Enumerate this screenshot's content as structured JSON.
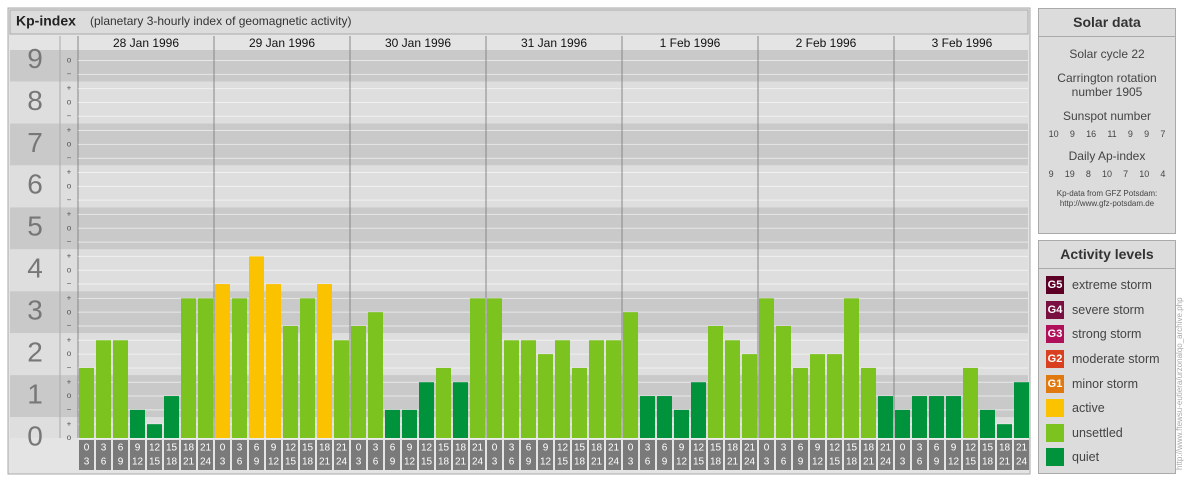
{
  "header": {
    "title": "Kp-index",
    "subtitle": "(planetary 3-hourly index of geomagnetic activity)"
  },
  "chart_data": {
    "type": "bar",
    "days": [
      "28 Jan 1996",
      "29 Jan 1996",
      "30 Jan 1996",
      "31 Jan 1996",
      "1 Feb 1996",
      "2 Feb 1996",
      "3 Feb 1996"
    ],
    "hours": [
      [
        0,
        3
      ],
      [
        3,
        6
      ],
      [
        6,
        9
      ],
      [
        9,
        12
      ],
      [
        12,
        15
      ],
      [
        15,
        18
      ],
      [
        18,
        21
      ],
      [
        21,
        24
      ]
    ],
    "values": [
      1.67,
      2.33,
      2.33,
      0.67,
      0.33,
      1,
      3.33,
      3.33,
      3.67,
      3.33,
      4.33,
      3.67,
      2.67,
      3.33,
      3.67,
      2.33,
      2.67,
      3,
      0.67,
      0.67,
      1.33,
      1.67,
      1.33,
      3.33,
      3.33,
      2.33,
      2.33,
      2,
      2.33,
      1.67,
      2.33,
      2.33,
      3,
      1,
      1,
      0.67,
      1.33,
      2.67,
      2.33,
      2,
      3.33,
      2.67,
      1.67,
      2,
      2,
      3.33,
      1.67,
      1,
      0.67,
      1,
      1,
      1,
      1.67,
      0.67,
      0.33,
      1.33
    ],
    "colors": [
      "#7cc320",
      "#7cc320",
      "#7cc320",
      "#00933c",
      "#00933c",
      "#00933c",
      "#7cc320",
      "#7cc320",
      "#fbc200",
      "#7cc320",
      "#fbc200",
      "#fbc200",
      "#7cc320",
      "#7cc320",
      "#fbc200",
      "#7cc320",
      "#7cc320",
      "#7cc320",
      "#00933c",
      "#00933c",
      "#00933c",
      "#7cc320",
      "#00933c",
      "#7cc320",
      "#7cc320",
      "#7cc320",
      "#7cc320",
      "#7cc320",
      "#7cc320",
      "#7cc320",
      "#7cc320",
      "#7cc320",
      "#7cc320",
      "#00933c",
      "#00933c",
      "#00933c",
      "#00933c",
      "#7cc320",
      "#7cc320",
      "#7cc320",
      "#7cc320",
      "#7cc320",
      "#7cc320",
      "#7cc320",
      "#7cc320",
      "#7cc320",
      "#7cc320",
      "#00933c",
      "#00933c",
      "#00933c",
      "#00933c",
      "#00933c",
      "#7cc320",
      "#00933c",
      "#00933c",
      "#00933c"
    ],
    "ylim": [
      0,
      9.25
    ],
    "yticks": [
      0,
      1,
      2,
      3,
      4,
      5,
      6,
      7,
      8,
      9
    ],
    "minor_ticks": [
      {
        "value": 0,
        "label": "o"
      },
      {
        "value": 0.33,
        "label": "+"
      },
      {
        "value": 0.67,
        "label": "−"
      },
      {
        "value": 1,
        "label": "o"
      },
      {
        "value": 1.33,
        "label": "+"
      },
      {
        "value": 1.67,
        "label": "−"
      },
      {
        "value": 2,
        "label": "o"
      },
      {
        "value": 2.33,
        "label": "+"
      },
      {
        "value": 2.67,
        "label": "−"
      },
      {
        "value": 3,
        "label": "o"
      },
      {
        "value": 3.33,
        "label": "+"
      },
      {
        "value": 3.67,
        "label": "−"
      },
      {
        "value": 4,
        "label": "o"
      },
      {
        "value": 4.33,
        "label": "+"
      },
      {
        "value": 4.67,
        "label": "−"
      },
      {
        "value": 5,
        "label": "o"
      },
      {
        "value": 5.33,
        "label": "+"
      },
      {
        "value": 5.67,
        "label": "−"
      },
      {
        "value": 6,
        "label": "o"
      },
      {
        "value": 6.33,
        "label": "+"
      },
      {
        "value": 6.67,
        "label": "−"
      },
      {
        "value": 7,
        "label": "o"
      },
      {
        "value": 7.33,
        "label": "+"
      },
      {
        "value": 7.67,
        "label": "−"
      },
      {
        "value": 8,
        "label": "o"
      },
      {
        "value": 8.33,
        "label": "+"
      },
      {
        "value": 8.67,
        "label": "−"
      },
      {
        "value": 9,
        "label": "o"
      }
    ],
    "grid": true
  },
  "solar_data": {
    "title": "Solar data",
    "cycle": "Solar cycle 22",
    "carrington": "Carrington rotation number 1905",
    "sunspot_title": "Sunspot number",
    "sunspot": [
      10,
      9,
      16,
      11,
      9,
      9,
      7
    ],
    "ap_title": "Daily Ap-index",
    "ap": [
      9,
      19,
      8,
      10,
      7,
      10,
      4
    ],
    "source": "Kp-data from GFZ Potsdam:",
    "url": "http://www.gfz-potsdam.de"
  },
  "activity_levels": {
    "title": "Activity levels",
    "items": [
      {
        "code": "G5",
        "label": "extreme storm",
        "color": "#5c0026"
      },
      {
        "code": "G4",
        "label": "severe storm",
        "color": "#7a1040"
      },
      {
        "code": "G3",
        "label": "strong storm",
        "color": "#b0105a"
      },
      {
        "code": "G2",
        "label": "moderate storm",
        "color": "#d84020"
      },
      {
        "code": "G1",
        "label": "minor storm",
        "color": "#e07a10"
      },
      {
        "label": "active",
        "color": "#fbc200"
      },
      {
        "label": "unsettled",
        "color": "#7cc320"
      },
      {
        "label": "quiet",
        "color": "#00933c"
      }
    ]
  },
  "side_note": "http://www.ftewsu-eutiera/urzonalqo_archive.php"
}
